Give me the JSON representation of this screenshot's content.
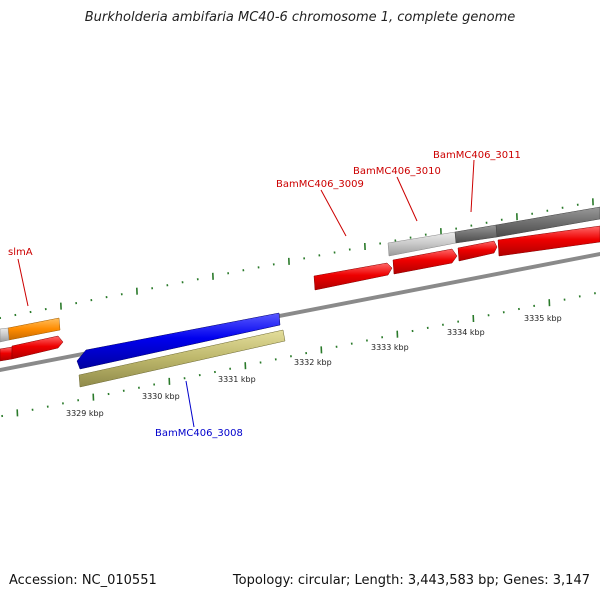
{
  "title": "Burkholderia ambifaria MC40-6 chromosome 1, complete genome",
  "footer": {
    "accession": "Accession: NC_010551",
    "summary": "Topology: circular; Length: 3,443,583 bp; Genes: 3,147"
  },
  "gene_labels": {
    "slmA": "slmA",
    "g3008": "BamMC406_3008",
    "g3009": "BamMC406_3009",
    "g3010": "BamMC406_3010",
    "g3011": "BamMC406_3011"
  },
  "scale_labels": {
    "k3329": "3329 kbp",
    "k3330": "3330 kbp",
    "k3331": "3331 kbp",
    "k3332": "3332 kbp",
    "k3333": "3333 kbp",
    "k3334": "3334 kbp",
    "k3335": "3335 kbp"
  },
  "colors": {
    "forward_cds": "#ee0000",
    "reverse_cds": "#0000ee",
    "slmA": "#ff8c00",
    "reverse_other": "#bdb76b",
    "pseudo_light": "#c8c8c8",
    "pseudo_dark": "#707070",
    "backbone": "#888888",
    "tick": "#2a7a2a",
    "label_forward": "#cc0000",
    "label_reverse": "#0000cc"
  }
}
